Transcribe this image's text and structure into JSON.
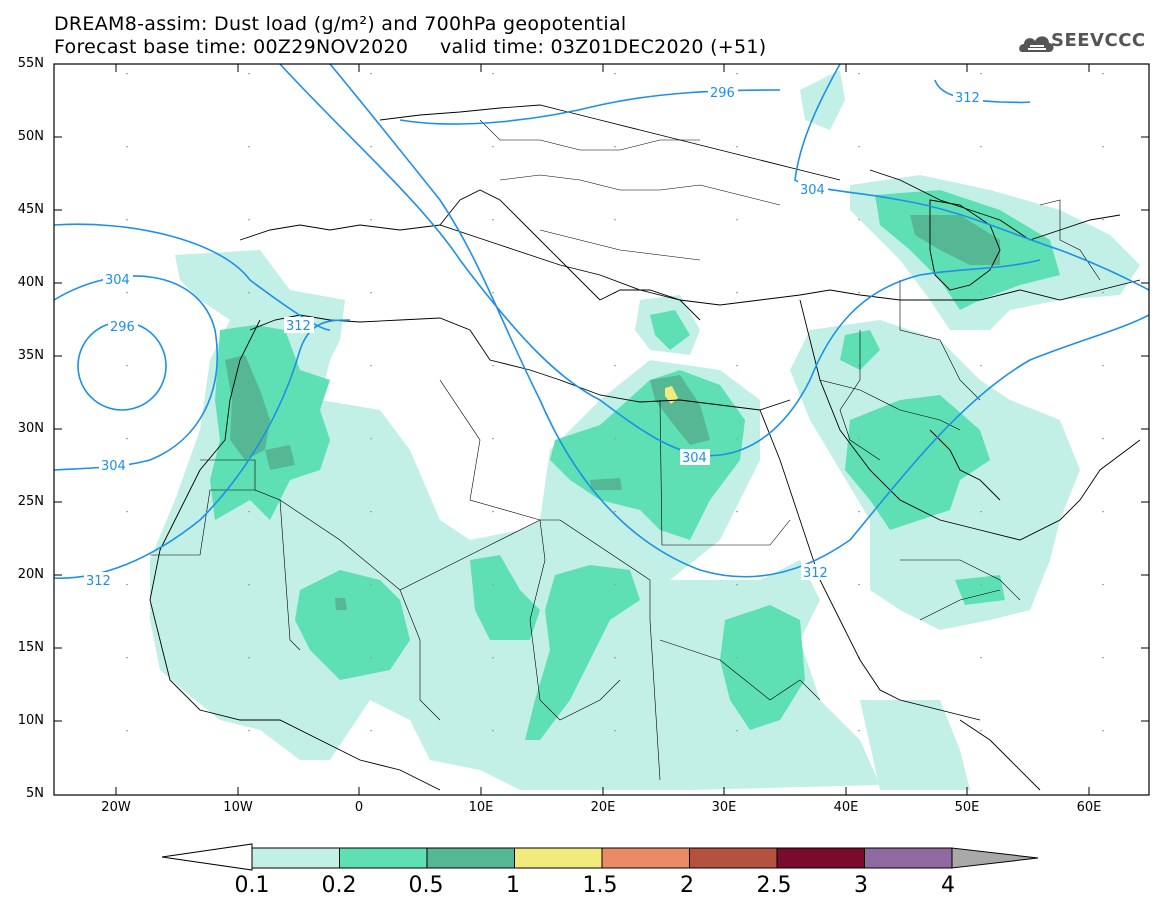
{
  "title": {
    "line1": "DREAM8-assim: Dust load (g/m²) and 700hPa geopotential",
    "line2": "Forecast base time: 00Z29NOV2020     valid time: 03Z01DEC2020 (+51)"
  },
  "logo": {
    "text": "SEEVCCC",
    "icon": "cloud-icon"
  },
  "axes": {
    "lat_labels": [
      "55N",
      "50N",
      "45N",
      "40N",
      "35N",
      "30N",
      "25N",
      "20N",
      "15N",
      "10N",
      "5N"
    ],
    "lon_labels": [
      "20W",
      "10W",
      "0",
      "10E",
      "20E",
      "30E",
      "40E",
      "50E",
      "60E"
    ]
  },
  "contours": {
    "labels": [
      "296",
      "312",
      "304",
      "296",
      "312",
      "304",
      "312",
      "304",
      "304",
      "312"
    ]
  },
  "colorbar": {
    "ticks": [
      "0.1",
      "0.2",
      "0.5",
      "1",
      "1.5",
      "2",
      "2.5",
      "3",
      "4"
    ],
    "colors": [
      "#c2efe6",
      "#5ee0b4",
      "#55b794",
      "#f1ea7d",
      "#e98b67",
      "#b4513f",
      "#7a0b2d",
      "#8e6aa0",
      "#a9a9a9"
    ]
  },
  "colors": {
    "contour": "#1e90e6",
    "dust_low": "#c2efe6",
    "dust_mid": "#5ee0b4",
    "dust_high": "#55b794",
    "dust_peak": "#f1ea7d"
  }
}
